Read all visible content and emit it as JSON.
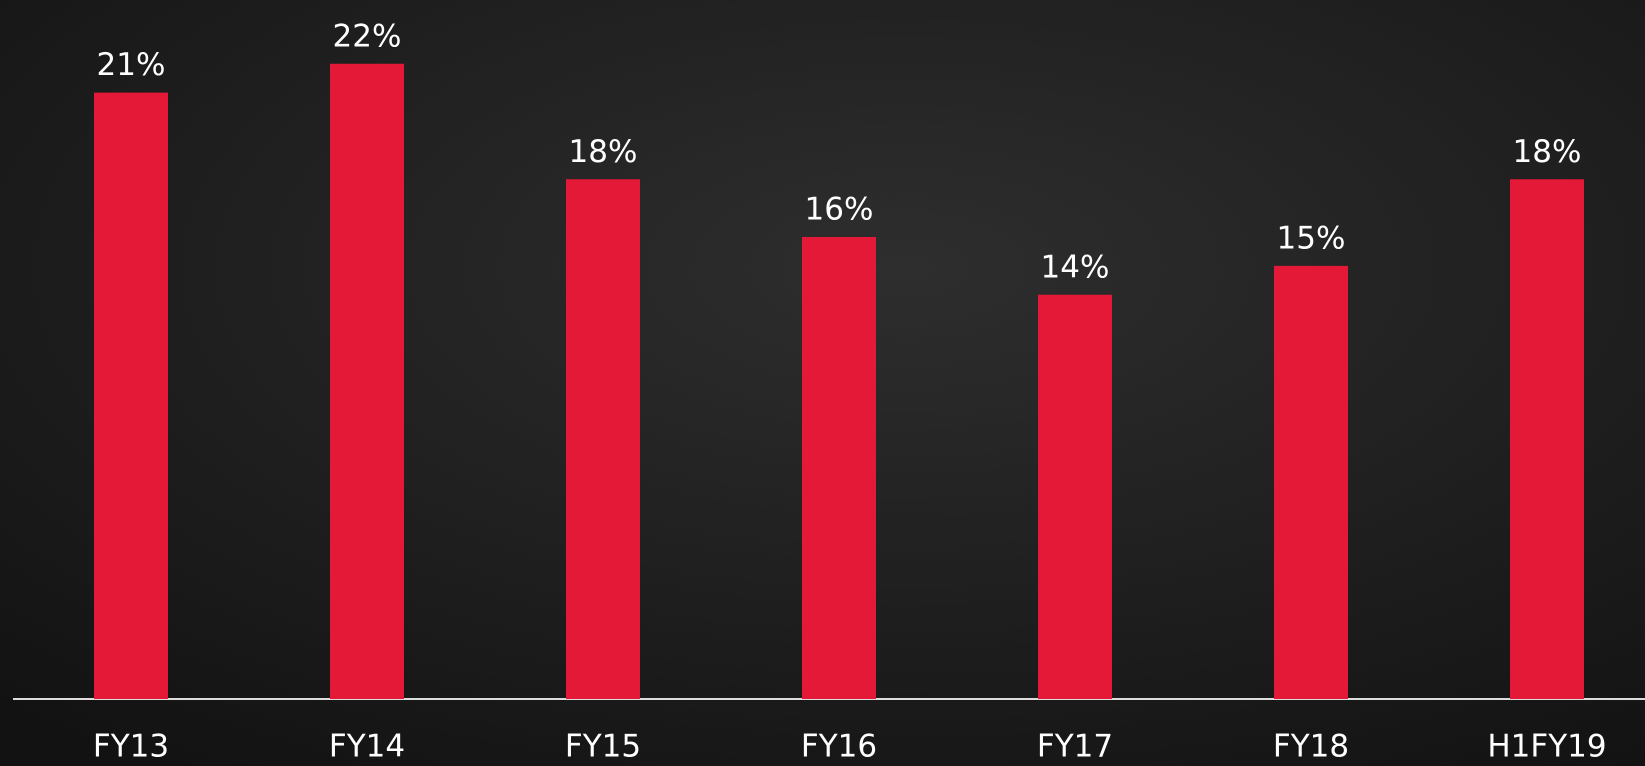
{
  "chart_data": {
    "type": "bar",
    "categories": [
      "FY13",
      "FY14",
      "FY15",
      "FY16",
      "FY17",
      "FY18",
      "H1FY19"
    ],
    "values": [
      21,
      22,
      18,
      16,
      14,
      15,
      18
    ],
    "value_labels": [
      "21%",
      "22%",
      "18%",
      "16%",
      "14%",
      "15%",
      "18%"
    ],
    "color": "#e31937",
    "ylim": [
      0,
      24
    ]
  }
}
